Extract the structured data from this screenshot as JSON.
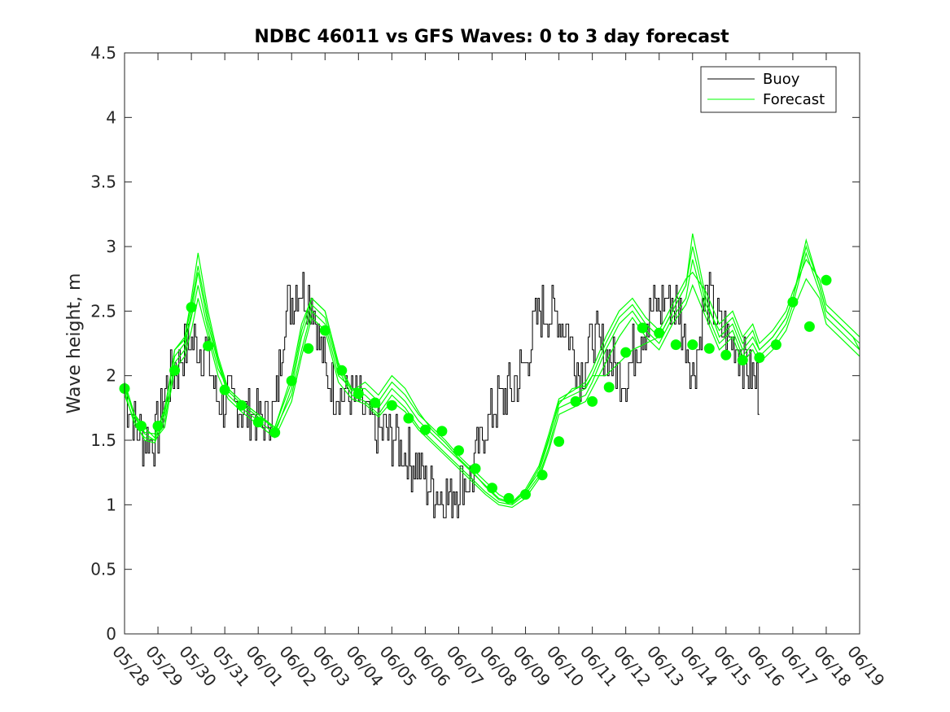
{
  "chart_data": {
    "type": "line",
    "title": "NDBC 46011 vs GFS Waves: 0 to 3 day forecast",
    "xlabel": "",
    "ylabel": "Wave height, m",
    "xlim": [
      "05/28",
      "06/19"
    ],
    "ylim": [
      0,
      4.5
    ],
    "x_tick_labels": [
      "05/28",
      "05/29",
      "05/30",
      "05/31",
      "06/01",
      "06/02",
      "06/03",
      "06/04",
      "06/05",
      "06/06",
      "06/07",
      "06/08",
      "06/09",
      "06/10",
      "06/11",
      "06/12",
      "06/13",
      "06/14",
      "06/15",
      "06/16",
      "06/17",
      "06/18",
      "06/19"
    ],
    "y_tick_labels": [
      "0",
      "0.5",
      "1",
      "1.5",
      "2",
      "2.5",
      "3",
      "3.5",
      "4",
      "4.5"
    ],
    "y_ticks": [
      0,
      0.5,
      1,
      1.5,
      2,
      2.5,
      3,
      3.5,
      4,
      4.5
    ],
    "grid": false,
    "legend": {
      "position": "top-right",
      "entries": [
        "Buoy",
        "Forecast"
      ]
    },
    "colors": {
      "buoy": "#000000",
      "forecast": "#00ff00",
      "axes": "#262626"
    },
    "x_units": "days since 05/28",
    "buoy_anchors": {
      "x": [
        0,
        0.3,
        0.6,
        1.0,
        1.2,
        1.6,
        2.0,
        2.4,
        2.8,
        3.1,
        3.5,
        3.9,
        4.2,
        4.5,
        4.8,
        5.2,
        5.6,
        6.0,
        6.3,
        6.6,
        7.0,
        7.5,
        8.0,
        8.5,
        9.0,
        9.3,
        9.7,
        10.0,
        10.4,
        10.8,
        11.2,
        11.6,
        12.0,
        12.4,
        12.8,
        13.2,
        13.6,
        14.0,
        14.3,
        14.6,
        15.0,
        15.4,
        15.8,
        16.2,
        16.6,
        17.0,
        17.4,
        17.8,
        18.0,
        18.4,
        18.8,
        19.0
      ],
      "y": [
        1.9,
        1.6,
        1.5,
        1.55,
        1.9,
        2.1,
        2.3,
        2.2,
        1.8,
        1.8,
        1.75,
        1.7,
        1.65,
        1.75,
        2.5,
        2.7,
        2.6,
        2.0,
        1.9,
        1.85,
        1.8,
        1.55,
        1.55,
        1.35,
        1.2,
        1.1,
        1.05,
        1.15,
        1.25,
        1.6,
        1.8,
        1.9,
        2.1,
        2.5,
        2.5,
        2.4,
        2.0,
        2.3,
        2.2,
        2.1,
        2.0,
        2.3,
        2.5,
        2.6,
        2.5,
        2.0,
        2.6,
        2.4,
        2.3,
        2.2,
        2.0,
        1.9
      ]
    },
    "series": [
      {
        "name": "Forecast",
        "lines": [
          {
            "x": [
              0,
              0.3,
              0.6,
              0.9,
              1.2,
              1.5,
              1.8,
              2.0,
              2.2,
              2.5,
              2.8,
              3.1,
              3.5,
              4.0,
              4.5,
              5.0,
              5.3,
              5.6,
              6.0,
              6.4,
              6.8,
              7.2,
              7.6,
              8.0,
              8.4,
              8.8,
              9.2,
              9.6,
              10.0,
              10.4,
              10.8,
              11.2,
              11.6,
              12.0,
              12.4,
              12.7,
              13.0,
              13.4,
              13.8,
              14.0,
              14.4,
              14.8,
              15.2,
              15.6,
              16.0,
              16.4,
              16.8,
              17.0,
              17.4,
              17.8,
              18.2,
              18.5,
              18.8,
              19.0,
              19.4,
              19.8,
              20.0,
              20.4,
              20.8,
              21.0,
              21.4,
              21.8,
              22.0
            ],
            "y": [
              1.9,
              1.7,
              1.55,
              1.5,
              1.7,
              2.2,
              2.3,
              2.6,
              2.95,
              2.5,
              2.15,
              1.9,
              1.8,
              1.7,
              1.6,
              2.0,
              2.4,
              2.6,
              2.5,
              2.1,
              1.9,
              1.85,
              1.75,
              1.9,
              1.8,
              1.65,
              1.55,
              1.45,
              1.35,
              1.25,
              1.15,
              1.05,
              1.02,
              1.1,
              1.25,
              1.5,
              1.8,
              1.85,
              1.9,
              2.0,
              2.25,
              2.45,
              2.55,
              2.4,
              2.3,
              2.5,
              2.7,
              3.1,
              2.6,
              2.3,
              2.4,
              2.2,
              2.3,
              2.2,
              2.3,
              2.45,
              2.6,
              3.05,
              2.7,
              2.5,
              2.4,
              2.3,
              2.25
            ]
          },
          {
            "x": [
              0,
              0.3,
              0.6,
              0.9,
              1.2,
              1.5,
              1.8,
              2.0,
              2.2,
              2.5,
              2.8,
              3.1,
              3.5,
              4.0,
              4.5,
              5.0,
              5.3,
              5.6,
              6.0,
              6.4,
              6.8,
              7.2,
              7.6,
              8.0,
              8.4,
              8.8,
              9.2,
              9.6,
              10.0,
              10.4,
              10.8,
              11.2,
              11.6,
              12.0,
              12.4,
              12.7,
              13.0,
              13.4,
              13.8,
              14.0,
              14.4,
              14.8,
              15.2,
              15.6,
              16.0,
              16.4,
              16.8,
              17.0,
              17.4,
              17.8,
              18.2,
              18.5,
              18.8,
              19.0,
              19.4,
              19.8,
              20.0,
              20.4,
              20.8,
              21.0,
              21.4,
              21.8,
              22.0
            ],
            "y": [
              1.85,
              1.65,
              1.5,
              1.48,
              1.65,
              2.1,
              2.2,
              2.5,
              2.8,
              2.4,
              2.1,
              1.85,
              1.75,
              1.65,
              1.55,
              1.9,
              2.3,
              2.55,
              2.45,
              2.05,
              1.85,
              1.8,
              1.7,
              1.85,
              1.75,
              1.6,
              1.5,
              1.4,
              1.3,
              1.2,
              1.1,
              1.02,
              1.0,
              1.08,
              1.22,
              1.45,
              1.75,
              1.8,
              1.85,
              1.95,
              2.2,
              2.4,
              2.5,
              2.35,
              2.25,
              2.45,
              2.6,
              2.9,
              2.5,
              2.25,
              2.35,
              2.15,
              2.25,
              2.15,
              2.25,
              2.4,
              2.55,
              2.95,
              2.65,
              2.45,
              2.35,
              2.25,
              2.2
            ]
          },
          {
            "x": [
              0,
              0.3,
              0.6,
              0.9,
              1.2,
              1.5,
              1.8,
              2.0,
              2.2,
              2.5,
              2.8,
              3.1,
              3.5,
              4.0,
              4.5,
              5.0,
              5.3,
              5.6,
              6.0,
              6.4,
              6.8,
              7.2,
              7.6,
              8.0,
              8.4,
              8.8,
              9.2,
              9.6,
              10.0,
              10.4,
              10.8,
              11.2,
              11.6,
              12.0,
              12.4,
              12.7,
              13.0,
              13.4,
              13.8,
              14.0,
              14.4,
              14.8,
              15.2,
              15.6,
              16.0,
              16.4,
              16.8,
              17.0,
              17.4,
              17.8,
              18.2,
              18.5,
              18.8,
              19.0,
              19.4,
              19.8,
              20.0,
              20.4,
              20.8,
              21.0,
              21.4,
              21.8,
              22.0
            ],
            "y": [
              1.95,
              1.7,
              1.6,
              1.52,
              1.75,
              2.15,
              2.25,
              2.45,
              2.7,
              2.35,
              2.05,
              1.9,
              1.8,
              1.7,
              1.58,
              1.85,
              2.2,
              2.5,
              2.4,
              2.0,
              1.9,
              1.9,
              1.8,
              1.95,
              1.85,
              1.7,
              1.6,
              1.5,
              1.38,
              1.28,
              1.18,
              1.08,
              1.02,
              1.12,
              1.3,
              1.55,
              1.82,
              1.88,
              1.95,
              2.05,
              2.3,
              2.5,
              2.6,
              2.45,
              2.35,
              2.55,
              2.75,
              2.8,
              2.65,
              2.4,
              2.5,
              2.3,
              2.4,
              2.25,
              2.35,
              2.5,
              2.65,
              2.9,
              2.75,
              2.55,
              2.45,
              2.35,
              2.3
            ]
          },
          {
            "x": [
              0,
              0.3,
              0.6,
              0.9,
              1.2,
              1.5,
              1.8,
              2.0,
              2.2,
              2.5,
              2.8,
              3.1,
              3.5,
              4.0,
              4.5,
              5.0,
              5.3,
              5.6,
              6.0,
              6.4,
              6.8,
              7.2,
              7.6,
              8.0,
              8.4,
              8.8,
              9.2,
              9.6,
              10.0,
              10.4,
              10.8,
              11.2,
              11.6,
              12.0,
              12.4,
              12.7,
              13.0,
              13.4,
              13.8,
              14.0,
              14.4,
              14.8,
              15.2,
              15.6,
              16.0,
              16.4,
              16.8,
              17.0,
              17.4,
              17.8,
              18.2,
              18.5,
              18.8,
              19.0,
              19.4,
              19.8,
              20.0,
              20.4,
              20.8,
              21.0,
              21.4,
              21.8,
              22.0
            ],
            "y": [
              1.88,
              1.62,
              1.52,
              1.5,
              1.6,
              2.05,
              2.15,
              2.35,
              2.6,
              2.3,
              2.0,
              1.82,
              1.72,
              1.62,
              1.52,
              1.8,
              2.15,
              2.45,
              2.35,
              1.95,
              1.82,
              1.78,
              1.68,
              1.8,
              1.72,
              1.58,
              1.48,
              1.38,
              1.28,
              1.18,
              1.08,
              1.0,
              0.98,
              1.05,
              1.2,
              1.42,
              1.7,
              1.75,
              1.8,
              1.9,
              2.1,
              2.3,
              2.45,
              2.3,
              2.2,
              2.4,
              2.55,
              2.7,
              2.45,
              2.2,
              2.3,
              2.1,
              2.2,
              2.1,
              2.2,
              2.35,
              2.5,
              2.75,
              2.6,
              2.4,
              2.3,
              2.2,
              2.15
            ]
          },
          {
            "x": [
              0,
              0.3,
              0.6,
              0.9,
              1.2,
              1.5,
              1.8,
              2.0,
              2.2,
              2.5,
              2.8,
              3.1,
              3.5,
              4.0,
              4.5,
              5.0,
              5.3,
              5.6,
              6.0,
              6.4,
              6.8,
              7.2,
              7.6,
              8.0,
              8.4,
              8.8,
              9.2,
              9.6,
              10.0,
              10.4,
              10.8,
              11.2,
              11.6,
              12.0,
              12.4,
              12.7,
              13.0,
              13.4,
              13.8,
              14.0,
              14.4,
              14.8,
              15.2,
              15.6,
              16.0,
              16.4,
              16.8,
              17.0,
              17.4,
              17.8,
              18.2,
              18.5,
              18.8,
              19.0,
              19.4,
              19.8,
              20.0,
              20.4,
              20.8,
              21.0,
              21.4,
              21.8,
              22.0
            ],
            "y": [
              1.92,
              1.68,
              1.56,
              1.55,
              1.72,
              2.2,
              2.28,
              2.55,
              2.85,
              2.45,
              2.12,
              1.88,
              1.78,
              1.68,
              1.6,
              1.95,
              2.35,
              2.6,
              2.5,
              2.08,
              1.88,
              1.95,
              1.85,
              2.0,
              1.9,
              1.72,
              1.58,
              1.48,
              1.36,
              1.26,
              1.14,
              1.04,
              1.01,
              1.1,
              1.28,
              1.52,
              1.78,
              1.9,
              1.92,
              2.0,
              2.0,
              2.1,
              2.2,
              2.25,
              2.3,
              2.5,
              2.7,
              3.0,
              2.55,
              2.35,
              2.45,
              2.25,
              2.35,
              2.2,
              2.3,
              2.45,
              2.6,
              3.0,
              2.7,
              2.5,
              2.4,
              2.3,
              2.2
            ]
          }
        ],
        "markers": {
          "x": [
            0,
            0.5,
            1.0,
            1.5,
            2.0,
            2.5,
            3.0,
            3.5,
            4.0,
            4.5,
            5.0,
            5.5,
            6.0,
            6.5,
            7.0,
            7.5,
            8.0,
            8.5,
            9.0,
            9.5,
            10.0,
            10.5,
            11.0,
            11.5,
            12.0,
            12.5,
            13.0,
            13.5,
            14.0,
            14.5,
            15.0,
            15.5,
            16.0,
            16.5,
            17.0,
            17.5,
            18.0,
            18.5,
            19.0,
            19.5,
            20.0,
            20.5,
            21.0
          ],
          "y": [
            1.9,
            1.61,
            1.61,
            2.04,
            2.53,
            2.23,
            1.89,
            1.77,
            1.64,
            1.56,
            1.96,
            2.21,
            2.35,
            2.04,
            1.86,
            1.79,
            1.77,
            1.67,
            1.58,
            1.57,
            1.42,
            1.28,
            1.13,
            1.05,
            1.08,
            1.23,
            1.49,
            1.8,
            1.8,
            1.91,
            2.18,
            2.37,
            2.33,
            2.24,
            2.24,
            2.21,
            2.16,
            2.12,
            2.14,
            2.24,
            2.57,
            2.38,
            2.74
          ]
        }
      }
    ]
  }
}
